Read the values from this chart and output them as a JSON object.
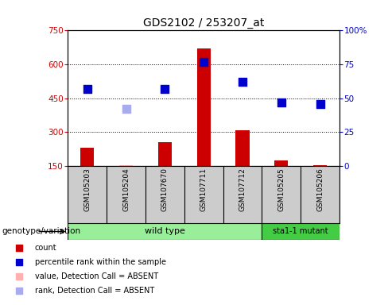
{
  "title": "GDS2102 / 253207_at",
  "samples": [
    "GSM105203",
    "GSM105204",
    "GSM107670",
    "GSM107711",
    "GSM107712",
    "GSM105205",
    "GSM105206"
  ],
  "counts": [
    230,
    155,
    255,
    670,
    310,
    175,
    152
  ],
  "count_absent": [
    false,
    true,
    false,
    false,
    false,
    false,
    false
  ],
  "ranks_present": [
    57,
    null,
    57,
    77,
    62,
    47,
    46
  ],
  "ranks_absent": [
    null,
    42,
    null,
    null,
    null,
    null,
    null
  ],
  "ylim_left": [
    150,
    750
  ],
  "ylim_right": [
    0,
    100
  ],
  "yticks_left": [
    150,
    300,
    450,
    600,
    750
  ],
  "yticks_right": [
    0,
    25,
    50,
    75,
    100
  ],
  "ytick_labels_right": [
    "0",
    "25",
    "50",
    "75",
    "100%"
  ],
  "bar_color_normal": "#cc0000",
  "bar_color_absent": "#ffb0b0",
  "dot_color_normal": "#0000cc",
  "dot_color_absent": "#aaaaee",
  "n_wild": 5,
  "n_mutant": 2,
  "wild_type_label": "wild type",
  "mutant_label": "sta1-1 mutant",
  "wild_type_color": "#99ee99",
  "mutant_color": "#44cc44",
  "sample_bg_color": "#cccccc",
  "genotype_label": "genotype/variation",
  "legend_labels": [
    "count",
    "percentile rank within the sample",
    "value, Detection Call = ABSENT",
    "rank, Detection Call = ABSENT"
  ],
  "legend_colors": [
    "#cc0000",
    "#0000cc",
    "#ffb0b0",
    "#aaaaee"
  ],
  "bar_width": 0.35,
  "dot_size": 50,
  "base_value": 150
}
